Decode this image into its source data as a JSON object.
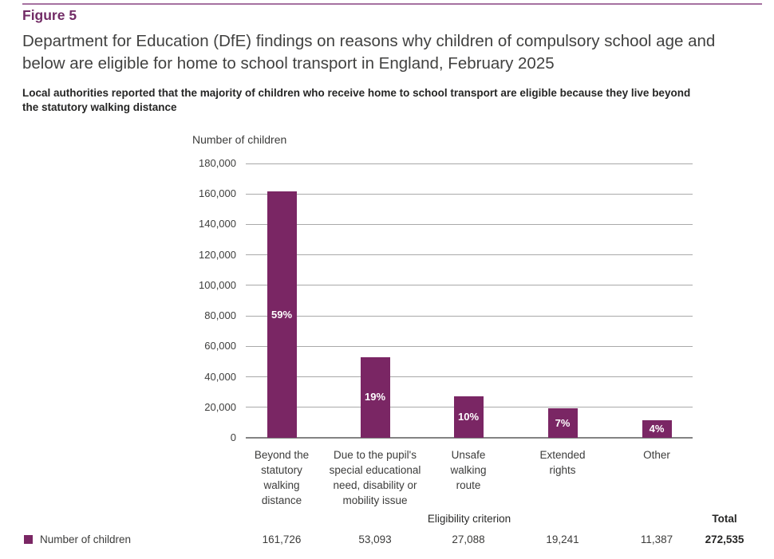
{
  "page": {
    "figure_label": "Figure 5",
    "title": "Department for Education (DfE) findings on reasons why children of compulsory school age and\nbelow are eligible for home to school transport in England, February 2025",
    "subtitle": "Local authorities reported that the majority of children who receive home to school transport are eligible because they live beyond\nthe statutory walking distance"
  },
  "colors": {
    "accent_purple": "#7a2664",
    "top_rule": "#a671a0",
    "grid_line": "#a9a9a9",
    "zero_axis_line": "#838383",
    "title_text": "#414140",
    "body_text": "#3c3c3b"
  },
  "chart_data": {
    "type": "bar",
    "title": "",
    "ylabel": "Number of children",
    "xlabel": "Eligibility criterion",
    "ylim": [
      0,
      180000
    ],
    "grid": true,
    "ytick_labels": [
      "180,000",
      "160,000",
      "140,000",
      "120,000",
      "100,000",
      "80,000",
      "60,000",
      "40,000",
      "20,000",
      "0"
    ],
    "categories": [
      "Beyond the\nstatutory\nwalking\ndistance",
      "Due to the pupil's\nspecial educational\nneed, disability or\nmobility issue",
      "Unsafe\nwalking\nroute",
      "Extended\nrights",
      "Other"
    ],
    "series": [
      {
        "name": "Number of children",
        "values": [
          161726,
          53093,
          27088,
          19241,
          11387
        ]
      }
    ],
    "bar_labels": [
      "59%",
      "19%",
      "10%",
      "7%",
      "4%"
    ],
    "bar_color": "#7a2664",
    "legend_position": "bottom-table",
    "total": 272535
  },
  "table": {
    "legend_label": "Number of children",
    "axis_header": "Eligibility criterion",
    "total_header": "Total",
    "values": [
      "161,726",
      "53,093",
      "27,088",
      "19,241",
      "11,387"
    ],
    "total_value": "272,535"
  }
}
